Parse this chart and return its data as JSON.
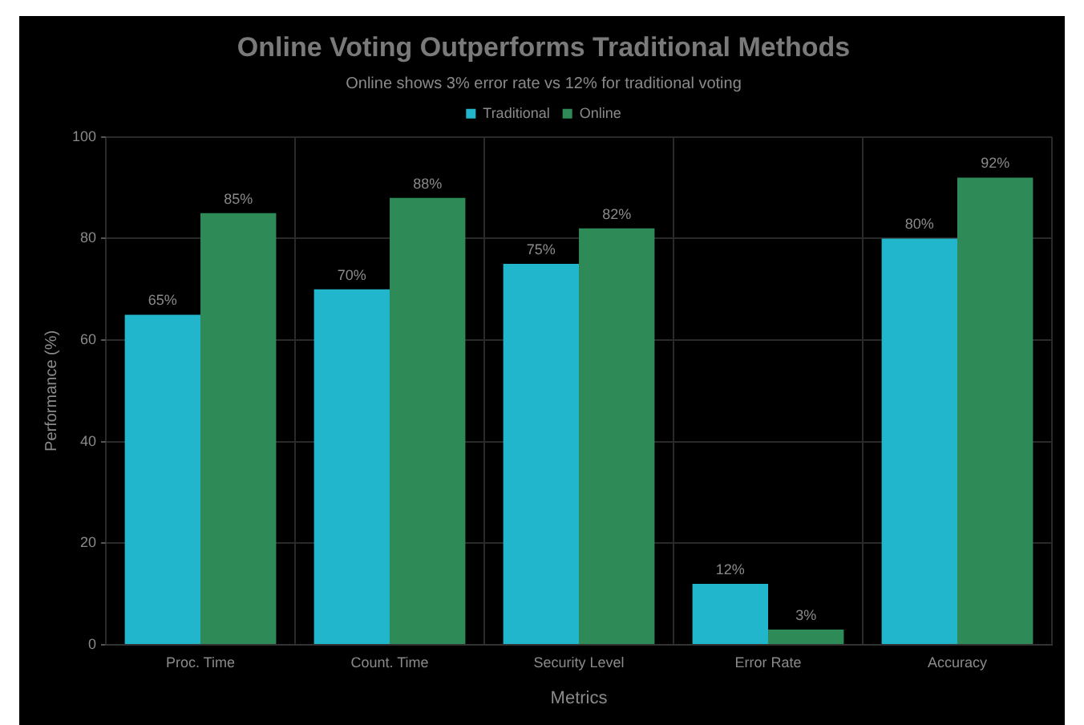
{
  "chart_data": {
    "type": "bar",
    "title": "Online Voting Outperforms Traditional Methods",
    "subtitle": "Online shows 3% error rate vs 12% for traditional voting",
    "xlabel": "Metrics",
    "ylabel": "Performance (%)",
    "categories": [
      "Proc. Time",
      "Count. Time",
      "Security Level",
      "Error Rate",
      "Accuracy"
    ],
    "series": [
      {
        "name": "Traditional",
        "color": "#22b6cd",
        "values": [
          65,
          70,
          75,
          12,
          80
        ],
        "value_labels": [
          "65%",
          "70%",
          "75%",
          "12%",
          "80%"
        ]
      },
      {
        "name": "Online",
        "color": "#2e8b57",
        "values": [
          85,
          88,
          82,
          3,
          92
        ],
        "value_labels": [
          "85%",
          "88%",
          "82%",
          "3%",
          "92%"
        ]
      }
    ],
    "ylim": [
      0,
      100
    ],
    "yticks": [
      0,
      20,
      40,
      60,
      80,
      100
    ],
    "grid": true,
    "legend": "top"
  }
}
